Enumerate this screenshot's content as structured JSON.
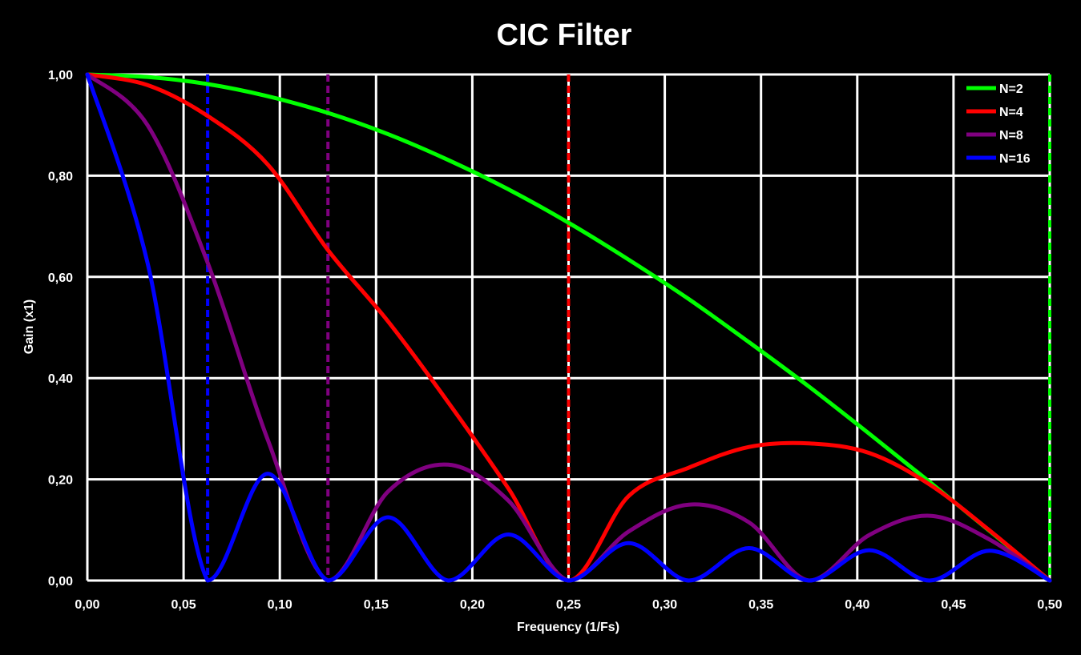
{
  "chart_data": {
    "type": "line",
    "title": "CIC Filter",
    "xlabel": "Frequency (1/Fs)",
    "ylabel": "Gain (x1)",
    "xlim": [
      0,
      0.5
    ],
    "ylim": [
      0,
      1
    ],
    "x_ticks": [
      "0,00",
      "0,05",
      "0,10",
      "0,15",
      "0,20",
      "0,25",
      "0,30",
      "0,35",
      "0,40",
      "0,45",
      "0,50"
    ],
    "y_ticks": [
      "0,00",
      "0,20",
      "0,40",
      "0,60",
      "0,80",
      "1,00"
    ],
    "grid": true,
    "legend_position": "top-right",
    "x": [
      0,
      0.03125,
      0.0625,
      0.09375,
      0.125,
      0.15625,
      0.1875,
      0.21875,
      0.25,
      0.28125,
      0.3125,
      0.34375,
      0.375,
      0.40625,
      0.4375,
      0.46875,
      0.5
    ],
    "series": [
      {
        "name": "N=2",
        "color": "#00ff00",
        "values": [
          1.0,
          0.995,
          0.981,
          0.957,
          0.924,
          0.882,
          0.831,
          0.773,
          0.707,
          0.634,
          0.556,
          0.471,
          0.383,
          0.29,
          0.195,
          0.098,
          0.0
        ]
      },
      {
        "name": "N=4",
        "color": "#ff0000",
        "values": [
          1.0,
          0.979,
          0.918,
          0.822,
          0.653,
          0.512,
          0.352,
          0.182,
          0.0,
          0.167,
          0.223,
          0.264,
          0.271,
          0.252,
          0.19,
          0.099,
          0.0
        ]
      },
      {
        "name": "N=8",
        "color": "#800080",
        "values": [
          1.0,
          0.9,
          0.628,
          0.278,
          0.0,
          0.176,
          0.229,
          0.158,
          0.0,
          0.097,
          0.15,
          0.115,
          0.0,
          0.09,
          0.128,
          0.081,
          0.0
        ]
      },
      {
        "name": "N=16",
        "color": "#0000ff",
        "values": [
          1.0,
          0.628,
          0.0,
          0.211,
          0.0,
          0.125,
          0.0,
          0.091,
          0.0,
          0.074,
          0.0,
          0.064,
          0.0,
          0.06,
          0.0,
          0.059,
          0.0
        ]
      }
    ],
    "vertical_markers": [
      {
        "x": 0.0625,
        "color": "#0000ff"
      },
      {
        "x": 0.125,
        "color": "#800080"
      },
      {
        "x": 0.25,
        "color": "#ff0000"
      },
      {
        "x": 0.5,
        "color": "#00ff00"
      }
    ]
  }
}
